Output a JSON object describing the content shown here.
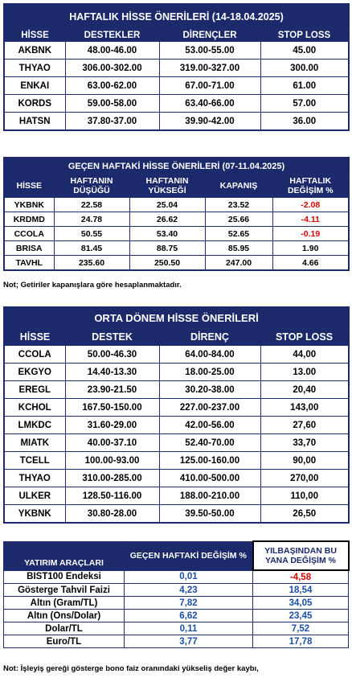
{
  "weekly": {
    "title": "HAFTALIK  HİSSE ÖNERİLERİ  (14-18.04.2025)",
    "headers": [
      "HİSSE",
      "DESTEKLER",
      "DİRENÇLER",
      "STOP LOSS"
    ],
    "rows": [
      [
        "AKBNK",
        "48.00-46.00",
        "53.00-55.00",
        "45.00"
      ],
      [
        "THYAO",
        "306.00-302.00",
        "319.00-327.00",
        "300.00"
      ],
      [
        "ENKAI",
        "63.00-62.00",
        "67.00-71.00",
        "61.00"
      ],
      [
        "KORDS",
        "59.00-58.00",
        "63.40-66.00",
        "57.00"
      ],
      [
        "HATSN",
        "37.80-37.00",
        "39.90-42.00",
        "36.00"
      ]
    ]
  },
  "last_week": {
    "title": "GEÇEN HAFTAKİ HİSSE ÖNERİLERİ   (07-11.04.2025)",
    "headers": [
      "HİSSE",
      "HAFTANIN\nDÜŞÜĞÜ",
      "HAFTANIN\nYÜKSEĞİ",
      "KAPANIŞ",
      "HAFTALIK\nDEĞİŞİM %"
    ],
    "rows": [
      [
        "YKBNK",
        "22.58",
        "25.04",
        "23.52",
        "-2.08"
      ],
      [
        "KRDMD",
        "24.78",
        "26.62",
        "25.66",
        "-4.11"
      ],
      [
        "CCOLA",
        "50.55",
        "53.40",
        "52.65",
        "-0.19"
      ],
      [
        "BRISA",
        "81.45",
        "88.75",
        "85.95",
        "1.90"
      ],
      [
        "TAVHL",
        "235.60",
        "250.50",
        "247.00",
        "4.66"
      ]
    ],
    "note": "Not; Getiriler kapanışlara göre hesaplanmaktadır."
  },
  "mid_term": {
    "title": "ORTA DÖNEM HİSSE ÖNERİLERİ",
    "headers": [
      "HİSSE",
      "DESTEK",
      "DİRENÇ",
      "STOP LOSS"
    ],
    "rows": [
      [
        "CCOLA",
        "50.00-46.30",
        "64.00-84.00",
        "44,00"
      ],
      [
        "EKGYO",
        "14.40-13.30",
        "18.00-25.00",
        "13.00"
      ],
      [
        "EREGL",
        "23.90-21.50",
        "30.20-38.00",
        "20,40"
      ],
      [
        "KCHOL",
        "167.50-150.00",
        "227.00-237.00",
        "143,00"
      ],
      [
        "LMKDC",
        "31.60-29.00",
        "42.00-56.00",
        "27,60"
      ],
      [
        "MIATK",
        "40.00-37.10",
        "52.40-70.00",
        "33,70"
      ],
      [
        "TCELL",
        "100.00-93.00",
        "125.00-160.00",
        "90,00"
      ],
      [
        "THYAO",
        "310.00-285.00",
        "410.00-500.00",
        "270,00"
      ],
      [
        "ULKER",
        "128.50-116.00",
        "188.00-210.00",
        "110,00"
      ],
      [
        "YKBNK",
        "30.80-28.00",
        "39.50-50.00",
        "26,50"
      ]
    ]
  },
  "instruments": {
    "headers": [
      "YATIRIM ARAÇLARI",
      "GEÇEN HAFTAKİ DEĞİŞİM %",
      "YILBAŞINDAN BU\nYANA DEĞİŞİM %"
    ],
    "rows": [
      [
        "BIST100 Endeksi",
        "0,01",
        "-4,58"
      ],
      [
        "Gösterge Tahvil Faizi",
        "4,23",
        "18,54"
      ],
      [
        "Altın (Gram/TL)",
        "7,82",
        "34,05"
      ],
      [
        "Altın (Ons/Dolar)",
        "6,62",
        "23,45"
      ],
      [
        "Dolar/TL",
        "0,11",
        "7,52"
      ],
      [
        "Euro/TL",
        "3,77",
        "17,78"
      ]
    ],
    "note": "Not: İşleyiş gereği gösterge bono faiz oranındaki yükseliş değer kaybı,"
  },
  "colors": {
    "navy": "#1c2a6b",
    "negative": "#e00000",
    "value_blue": "#1c4fa8"
  }
}
